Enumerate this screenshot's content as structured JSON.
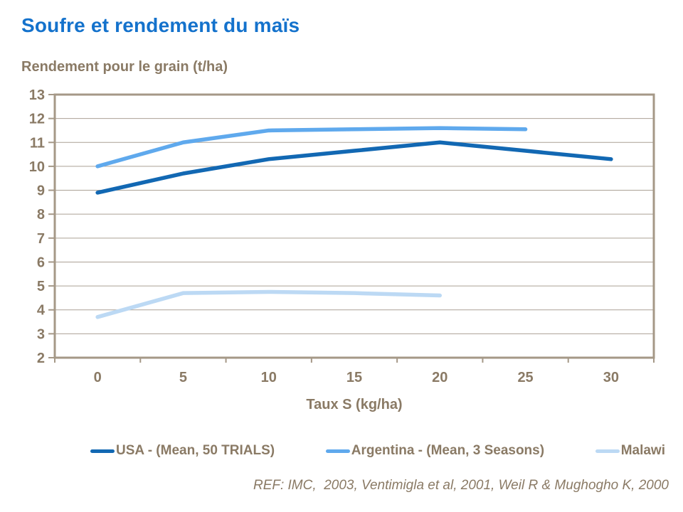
{
  "colors": {
    "title_blue": "#1472CC",
    "text_brown": "#8A7A65",
    "gridline": "#ABA195",
    "plot_border": "#A59887"
  },
  "chart_data": {
    "type": "line",
    "title": "Soufre et rendement du maïs",
    "subtitle": "Rendement pour le grain (t/ha)",
    "xlabel": "Taux S (kg/ha)",
    "ylabel": "Rendement pour le grain (t/ha)",
    "categories": [
      0,
      5,
      10,
      15,
      20,
      25,
      30
    ],
    "yticks": [
      2,
      3,
      4,
      5,
      6,
      7,
      8,
      9,
      10,
      11,
      12,
      13
    ],
    "ylim": [
      2,
      13
    ],
    "grid": true,
    "legend_position": "bottom",
    "series": [
      {
        "name": "USA - (Mean, 50 TRIALS)",
        "color": "#1268B3",
        "values": [
          8.9,
          9.7,
          10.3,
          10.65,
          11.0,
          10.65,
          10.3
        ]
      },
      {
        "name": "Argentina - (Mean, 3 Seasons)",
        "color": "#5FA9ED",
        "values": [
          10.0,
          11.0,
          11.5,
          11.55,
          11.6,
          11.55
        ]
      },
      {
        "name": "Malawi",
        "color": "#BCD9F4",
        "values": [
          3.7,
          4.7,
          4.75,
          4.7,
          4.6
        ]
      }
    ],
    "footer": "REF: IMC,  2003, Ventimigla et al, 2001, Weil R & Mughogho K, 2000"
  }
}
